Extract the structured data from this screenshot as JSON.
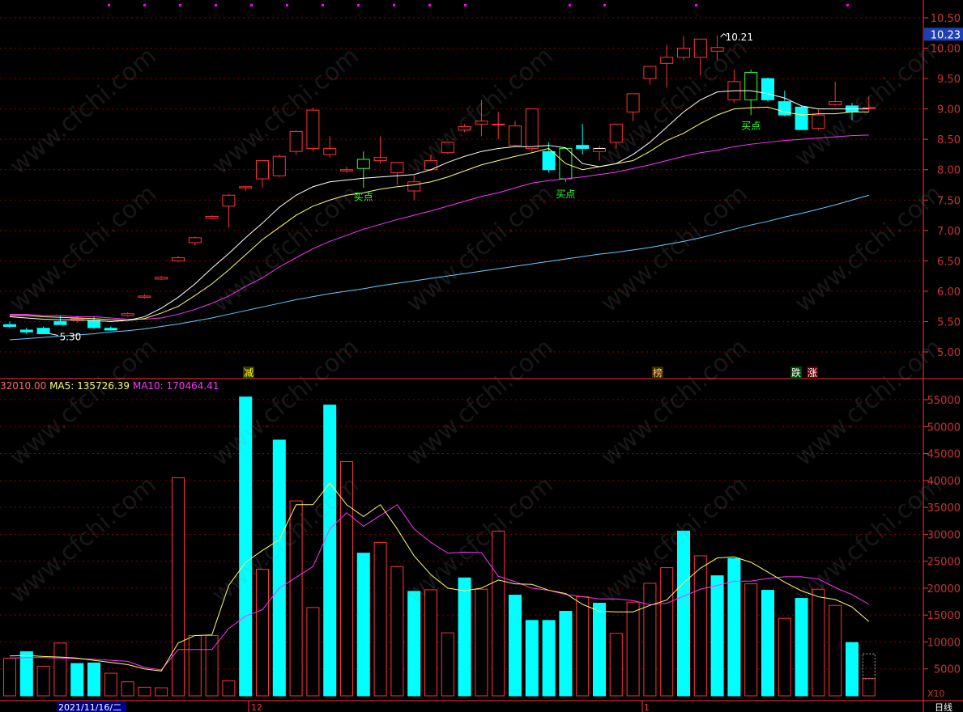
{
  "price_axis_ticks": [
    "10.50",
    "10.00",
    "9.50",
    "9.00",
    "8.50",
    "8.00",
    "7.50",
    "7.00",
    "6.50",
    "6.00",
    "5.50",
    "5.00"
  ],
  "current_price": "10.23",
  "high_label": "10.21",
  "low_label": "5.30",
  "buy_label": "买点",
  "signal_labels": [
    {
      "text": "减",
      "color": "#ffff00",
      "bg": "#3a3a00"
    },
    {
      "text": "榜",
      "color": "#ffcc66",
      "bg": "#3a2a00"
    },
    {
      "text": "跌",
      "color": "#ffffff",
      "bg": "#004400"
    },
    {
      "text": "涨",
      "color": "#ffffff",
      "bg": "#660000"
    }
  ],
  "volume_legend": {
    "vol": "32010.00",
    "ma5": "MA5: 135726.39",
    "ma10": "MA10: 170464.41"
  },
  "volume_axis_ticks": [
    "55000",
    "50000",
    "45000",
    "40000",
    "35000",
    "30000",
    "25000",
    "20000",
    "15000",
    "10000",
    "5000"
  ],
  "volume_unit": "X10",
  "date_label": "2021/11/16/二",
  "month_labels": [
    "12",
    "1"
  ],
  "period_label": "日线",
  "watermark": "www.cfchi.com",
  "colors": {
    "up": "#ff3232",
    "down": "#00ffff",
    "buy_up": "#33ff33",
    "ma_white": "#ffffff",
    "ma_yellow": "#ffff66",
    "ma_magenta": "#ff33ff",
    "ma_blue": "#66ccff",
    "grid": "#8b0000",
    "axis_text": "#cc3333"
  },
  "chart_data": [
    {
      "type": "candlestick",
      "title": "",
      "ylim": [
        4.75,
        10.6
      ],
      "candles": [
        {
          "o": 5.45,
          "h": 5.5,
          "l": 5.4,
          "c": 5.42
        },
        {
          "o": 5.36,
          "h": 5.4,
          "l": 5.3,
          "c": 5.33
        },
        {
          "o": 5.39,
          "h": 5.42,
          "l": 5.3,
          "c": 5.3
        },
        {
          "o": 5.5,
          "h": 5.6,
          "l": 5.45,
          "c": 5.45
        },
        {
          "o": 5.52,
          "h": 5.6,
          "l": 5.48,
          "c": 5.55
        },
        {
          "o": 5.52,
          "h": 5.58,
          "l": 5.38,
          "c": 5.4
        },
        {
          "o": 5.39,
          "h": 5.42,
          "l": 5.35,
          "c": 5.36
        },
        {
          "o": 5.6,
          "h": 5.65,
          "l": 5.58,
          "c": 5.63
        },
        {
          "o": 5.9,
          "h": 5.95,
          "l": 5.88,
          "c": 5.92
        },
        {
          "o": 6.2,
          "h": 6.25,
          "l": 6.18,
          "c": 6.23
        },
        {
          "o": 6.5,
          "h": 6.58,
          "l": 6.48,
          "c": 6.55
        },
        {
          "o": 6.8,
          "h": 6.9,
          "l": 6.75,
          "c": 6.88
        },
        {
          "o": 7.2,
          "h": 7.25,
          "l": 7.18,
          "c": 7.23
        },
        {
          "o": 7.4,
          "h": 7.6,
          "l": 7.05,
          "c": 7.58
        },
        {
          "o": 7.7,
          "h": 7.73,
          "l": 7.65,
          "c": 7.72
        },
        {
          "o": 7.85,
          "h": 8.15,
          "l": 7.7,
          "c": 8.15
        },
        {
          "o": 7.9,
          "h": 8.25,
          "l": 7.88,
          "c": 8.22
        },
        {
          "o": 8.3,
          "h": 8.65,
          "l": 8.25,
          "c": 8.63
        },
        {
          "o": 8.35,
          "h": 9.02,
          "l": 8.3,
          "c": 8.98
        },
        {
          "o": 8.25,
          "h": 8.55,
          "l": 8.2,
          "c": 8.35
        },
        {
          "o": 7.98,
          "h": 8.05,
          "l": 7.95,
          "c": 8.0
        },
        {
          "o": 8.02,
          "h": 8.3,
          "l": 7.7,
          "c": 8.17
        },
        {
          "o": 8.15,
          "h": 8.55,
          "l": 8.1,
          "c": 8.2
        },
        {
          "o": 7.95,
          "h": 8.1,
          "l": 7.75,
          "c": 8.12
        },
        {
          "o": 7.65,
          "h": 7.9,
          "l": 7.5,
          "c": 7.8
        },
        {
          "o": 8.0,
          "h": 8.25,
          "l": 7.98,
          "c": 8.15
        },
        {
          "o": 8.28,
          "h": 8.45,
          "l": 8.26,
          "c": 8.45
        },
        {
          "o": 8.65,
          "h": 8.75,
          "l": 8.62,
          "c": 8.71
        },
        {
          "o": 8.75,
          "h": 9.15,
          "l": 8.55,
          "c": 8.8
        },
        {
          "o": 8.75,
          "h": 8.95,
          "l": 8.5,
          "c": 8.75
        },
        {
          "o": 8.4,
          "h": 8.8,
          "l": 8.38,
          "c": 8.72
        },
        {
          "o": 8.35,
          "h": 9.0,
          "l": 8.3,
          "c": 9.0
        },
        {
          "o": 8.3,
          "h": 8.45,
          "l": 7.95,
          "c": 8.0
        },
        {
          "o": 7.85,
          "h": 8.35,
          "l": 7.8,
          "c": 8.35
        },
        {
          "o": 8.4,
          "h": 8.75,
          "l": 8.25,
          "c": 8.35
        },
        {
          "o": 8.3,
          "h": 8.4,
          "l": 8.15,
          "c": 8.35
        },
        {
          "o": 8.45,
          "h": 8.75,
          "l": 8.35,
          "c": 8.75
        },
        {
          "o": 8.95,
          "h": 9.25,
          "l": 8.8,
          "c": 9.25
        },
        {
          "o": 9.5,
          "h": 9.7,
          "l": 9.4,
          "c": 9.7
        },
        {
          "o": 9.75,
          "h": 10.05,
          "l": 9.35,
          "c": 9.85
        },
        {
          "o": 9.85,
          "h": 10.2,
          "l": 9.8,
          "c": 10.0
        },
        {
          "o": 9.85,
          "h": 10.15,
          "l": 9.55,
          "c": 10.15
        },
        {
          "o": 9.95,
          "h": 10.21,
          "l": 9.8,
          "c": 10.01
        },
        {
          "o": 9.15,
          "h": 9.65,
          "l": 9.1,
          "c": 9.45
        },
        {
          "o": 9.15,
          "h": 9.65,
          "l": 8.9,
          "c": 9.6
        },
        {
          "o": 9.5,
          "h": 9.52,
          "l": 9.12,
          "c": 9.15
        },
        {
          "o": 9.12,
          "h": 9.3,
          "l": 8.88,
          "c": 8.9
        },
        {
          "o": 9.03,
          "h": 9.05,
          "l": 8.65,
          "c": 8.66
        },
        {
          "o": 8.68,
          "h": 9.0,
          "l": 8.65,
          "c": 8.9
        },
        {
          "o": 9.07,
          "h": 9.45,
          "l": 9.05,
          "c": 9.12
        },
        {
          "o": 9.05,
          "h": 9.1,
          "l": 8.82,
          "c": 8.95
        },
        {
          "o": 9.02,
          "h": 9.2,
          "l": 8.95,
          "c": 9.02
        }
      ],
      "ma_white": [
        5.58,
        5.56,
        5.54,
        5.53,
        5.53,
        5.52,
        5.5,
        5.52,
        5.58,
        5.72,
        5.9,
        6.12,
        6.38,
        6.62,
        6.88,
        7.12,
        7.38,
        7.58,
        7.72,
        7.8,
        7.83,
        7.86,
        7.88,
        7.9,
        7.92,
        8.0,
        8.12,
        8.22,
        8.3,
        8.35,
        8.38,
        8.38,
        8.4,
        8.36,
        8.1,
        8.05,
        8.1,
        8.25,
        8.45,
        8.7,
        8.95,
        9.15,
        9.28,
        9.3,
        9.3,
        9.25,
        9.18,
        9.05,
        9.0,
        9.0,
        9.0,
        9.0
      ],
      "ma_yellow": [
        5.6,
        5.6,
        5.58,
        5.57,
        5.56,
        5.55,
        5.53,
        5.52,
        5.55,
        5.64,
        5.75,
        5.93,
        6.12,
        6.35,
        6.6,
        6.85,
        7.05,
        7.25,
        7.4,
        7.5,
        7.58,
        7.62,
        7.68,
        7.72,
        7.75,
        7.8,
        7.88,
        7.98,
        8.08,
        8.15,
        8.22,
        8.28,
        8.35,
        8.1,
        8.0,
        8.05,
        8.1,
        8.15,
        8.3,
        8.48,
        8.6,
        8.76,
        8.9,
        9.0,
        9.02,
        9.03,
        8.95,
        8.9,
        8.92,
        8.92,
        8.95,
        8.95
      ],
      "ma_magenta": [
        5.62,
        5.62,
        5.6,
        5.6,
        5.58,
        5.58,
        5.56,
        5.54,
        5.54,
        5.56,
        5.62,
        5.7,
        5.8,
        5.92,
        6.08,
        6.22,
        6.4,
        6.55,
        6.7,
        6.82,
        6.92,
        7.02,
        7.1,
        7.18,
        7.25,
        7.32,
        7.4,
        7.48,
        7.56,
        7.62,
        7.7,
        7.78,
        7.82,
        7.85,
        7.88,
        7.92,
        7.96,
        8.02,
        8.08,
        8.15,
        8.22,
        8.28,
        8.32,
        8.38,
        8.42,
        8.45,
        8.48,
        8.5,
        8.52,
        8.54,
        8.56,
        8.57
      ],
      "ma_blue": [
        5.2,
        5.22,
        5.24,
        5.26,
        5.28,
        5.3,
        5.33,
        5.35,
        5.38,
        5.42,
        5.46,
        5.51,
        5.56,
        5.62,
        5.68,
        5.74,
        5.8,
        5.86,
        5.91,
        5.96,
        6.0,
        6.04,
        6.09,
        6.13,
        6.17,
        6.21,
        6.25,
        6.29,
        6.33,
        6.37,
        6.41,
        6.45,
        6.49,
        6.53,
        6.57,
        6.61,
        6.64,
        6.68,
        6.72,
        6.77,
        6.82,
        6.88,
        6.95,
        7.02,
        7.09,
        7.15,
        7.22,
        7.28,
        7.35,
        7.42,
        7.5,
        7.58
      ]
    },
    {
      "type": "bar",
      "title": "",
      "ylim": [
        0,
        58000
      ],
      "values": [
        7000,
        8200,
        5500,
        9800,
        6000,
        6100,
        4200,
        2600,
        1600,
        1500,
        40500,
        11200,
        11200,
        2800,
        55500,
        23500,
        47500,
        36200,
        16400,
        54000,
        43500,
        26500,
        28500,
        24000,
        19400,
        19700,
        11700,
        21900,
        19800,
        30600,
        18700,
        14000,
        14000,
        15700,
        18400,
        17200,
        11600,
        17400,
        20900,
        23800,
        30600,
        26000,
        22300,
        25500,
        20800,
        19600,
        14400,
        18100,
        19800,
        16800,
        9900,
        3200
      ],
      "down": [
        false,
        true,
        false,
        false,
        true,
        true,
        false,
        false,
        false,
        false,
        false,
        false,
        false,
        false,
        true,
        false,
        true,
        false,
        false,
        true,
        false,
        true,
        false,
        false,
        true,
        false,
        false,
        true,
        false,
        false,
        true,
        true,
        true,
        true,
        false,
        true,
        false,
        false,
        false,
        false,
        true,
        false,
        true,
        true,
        false,
        true,
        false,
        true,
        false,
        false,
        true,
        false
      ],
      "ma5": [
        7400,
        7500,
        7300,
        7200,
        7000,
        6600,
        6200,
        5800,
        5000,
        4600,
        9800,
        11200,
        11300,
        20500,
        24800,
        27000,
        29000,
        35500,
        35500,
        39500,
        35500,
        33300,
        35500,
        31000,
        26000,
        22500,
        20000,
        19500,
        20000,
        21500,
        20800,
        20700,
        19600,
        19000,
        17000,
        15700,
        15600,
        15600,
        16800,
        17800,
        21000,
        23700,
        25600,
        25800,
        24800,
        23000,
        21100,
        19500,
        18400,
        17900,
        16500,
        13800
      ],
      "ma10": [
        7000,
        7100,
        7100,
        7000,
        6900,
        6800,
        6600,
        6400,
        5300,
        4800,
        8600,
        8600,
        8600,
        12500,
        14800,
        16000,
        20000,
        22000,
        24000,
        31000,
        34000,
        31500,
        33500,
        35500,
        31000,
        28500,
        26500,
        26700,
        26600,
        22200,
        21200,
        20000,
        19600,
        18800,
        18400,
        18000,
        18000,
        17700,
        16900,
        17200,
        18500,
        19800,
        20500,
        21300,
        21300,
        21800,
        22100,
        22100,
        21700,
        20100,
        18800,
        17000
      ]
    }
  ]
}
